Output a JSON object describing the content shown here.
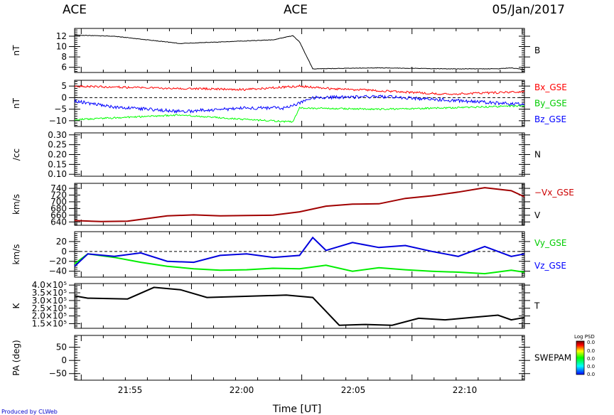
{
  "header": {
    "left": "ACE",
    "center": "ACE",
    "date": "05/Jan/2017"
  },
  "footer": {
    "produced_by": "Produced by CLWeb",
    "xlabel": "Time [UT]",
    "x_ticks": [
      "21:55",
      "22:00",
      "22:05",
      "22:10"
    ]
  },
  "colorbar": {
    "title": "Log PSD",
    "tick_labels": [
      "0.0",
      "0.0",
      "0.0",
      "0.0",
      "0.0"
    ],
    "colors": [
      "#0000ff",
      "#00ffff",
      "#00ff00",
      "#ffff00",
      "#ff0000",
      "#700000"
    ]
  },
  "chart_data": [
    {
      "type": "line",
      "ylabel": "nT",
      "ylim": [
        5,
        13.5
      ],
      "y_ticks": [
        6,
        8,
        10,
        12
      ],
      "y_tick_labels": [
        "6",
        "8",
        "10",
        "12"
      ],
      "series": [
        {
          "name": "B",
          "color": "#000000",
          "noise": 0.12,
          "x": [
            21.87,
            21.9,
            21.95,
            22.0,
            22.02,
            22.035,
            22.04,
            22.05,
            22.1,
            22.15,
            22.19,
            22.2,
            22.21
          ],
          "y": [
            12.2,
            12.0,
            10.6,
            11.1,
            11.3,
            12.1,
            10.9,
            5.7,
            5.9,
            5.7,
            5.7,
            5.9,
            5.5
          ]
        }
      ],
      "labels": [
        {
          "text": "B",
          "color": "#000000"
        }
      ],
      "dashed_zero": false
    },
    {
      "type": "line",
      "ylabel": "nT",
      "ylim": [
        -12.5,
        7.5
      ],
      "y_ticks": [
        -10,
        -5,
        0,
        5
      ],
      "y_tick_labels": [
        "−10",
        "−5",
        "0",
        "5"
      ],
      "series": [
        {
          "name": "Bx_GSE",
          "color": "#ff0000",
          "noise": 0.45,
          "x": [
            21.87,
            21.93,
            22.0,
            22.04,
            22.06,
            22.1,
            22.15,
            22.21
          ],
          "y": [
            5.0,
            4.2,
            3.5,
            5.0,
            4.0,
            3.0,
            1.5,
            2.5
          ]
        },
        {
          "name": "By_GSE",
          "color": "#00ff00",
          "noise": 0.35,
          "x": [
            21.87,
            21.95,
            22.0,
            22.035,
            22.04,
            22.1,
            22.15,
            22.21
          ],
          "y": [
            -9.5,
            -7.5,
            -9.5,
            -10.5,
            -4.5,
            -5.0,
            -4.5,
            -3.5
          ]
        },
        {
          "name": "Bz_GSE",
          "color": "#0000ff",
          "noise": 0.7,
          "x": [
            21.87,
            21.9,
            21.95,
            22.0,
            22.03,
            22.05,
            22.1,
            22.15,
            22.21
          ],
          "y": [
            -1.5,
            -4.0,
            -6.0,
            -4.5,
            -4.5,
            0.0,
            0.5,
            -1.0,
            -3.0
          ]
        }
      ],
      "labels": [
        {
          "text": "Bx_GSE",
          "color": "#ff0000"
        },
        {
          "text": "By_GSE",
          "color": "#00cc00"
        },
        {
          "text": "Bz_GSE",
          "color": "#0000ff"
        }
      ],
      "dashed_zero": true
    },
    {
      "type": "line",
      "ylabel": "/cc",
      "ylim": [
        0.09,
        0.31
      ],
      "y_ticks": [
        0.1,
        0.15,
        0.2,
        0.25,
        0.3
      ],
      "y_tick_labels": [
        "0.10",
        "0.15",
        "0.20",
        "0.25",
        "0.30"
      ],
      "series": [],
      "labels": [
        {
          "text": "N",
          "color": "#000000"
        }
      ],
      "dashed_zero": false
    },
    {
      "type": "line",
      "ylabel": "km/s",
      "ylim": [
        630,
        755
      ],
      "y_ticks": [
        640,
        660,
        680,
        700,
        720,
        740
      ],
      "y_tick_labels": [
        "640",
        "660",
        "680",
        "700",
        "720",
        "740"
      ],
      "series": [
        {
          "name": "-Vx_GSE",
          "color": "#a00000",
          "noise": 0,
          "x": [
            21.87,
            21.89,
            21.91,
            21.94,
            21.96,
            21.98,
            22.0,
            22.02,
            22.04,
            22.06,
            22.08,
            22.1,
            22.12,
            22.14,
            22.16,
            22.18,
            22.2,
            22.21
          ],
          "y": [
            644,
            641,
            642,
            658,
            661,
            658,
            659,
            660,
            670,
            687,
            693,
            694,
            710,
            718,
            729,
            742,
            733,
            715
          ]
        }
      ],
      "labels": [
        {
          "text": "−Vx_GSE",
          "color": "#cc0000"
        },
        {
          "text": "V",
          "color": "#000000"
        }
      ],
      "dashed_zero": false
    },
    {
      "type": "line",
      "ylabel": "km/s",
      "ylim": [
        -52,
        40
      ],
      "y_ticks": [
        -40,
        -20,
        0,
        20
      ],
      "y_tick_labels": [
        "−40",
        "−20",
        "0",
        "20"
      ],
      "series": [
        {
          "name": "Vy_GSE",
          "color": "#00ee00",
          "noise": 0,
          "x": [
            21.87,
            21.88,
            21.9,
            21.92,
            21.94,
            21.96,
            21.98,
            22.0,
            22.02,
            22.04,
            22.06,
            22.08,
            22.1,
            22.12,
            22.14,
            22.16,
            22.18,
            22.2,
            22.21
          ],
          "y": [
            -25,
            -5,
            -12,
            -22,
            -30,
            -35,
            -38,
            -37,
            -34,
            -35,
            -28,
            -40,
            -33,
            -37,
            -40,
            -42,
            -45,
            -38,
            -42
          ]
        },
        {
          "name": "Vz_GSE",
          "color": "#0000dd",
          "noise": 0,
          "x": [
            21.87,
            21.88,
            21.9,
            21.92,
            21.94,
            21.96,
            21.98,
            22.0,
            22.02,
            22.04,
            22.05,
            22.06,
            22.08,
            22.1,
            22.12,
            22.14,
            22.16,
            22.18,
            22.2,
            22.21
          ],
          "y": [
            -30,
            -5,
            -10,
            -3,
            -20,
            -22,
            -8,
            -5,
            -12,
            -8,
            28,
            2,
            18,
            8,
            12,
            0,
            -10,
            10,
            -10,
            -5
          ]
        }
      ],
      "labels": [
        {
          "text": "Vy_GSE",
          "color": "#00cc00"
        },
        {
          "text": "Vz_GSE",
          "color": "#0000ff"
        }
      ],
      "dashed_zero": true
    },
    {
      "type": "line",
      "ylabel": "K",
      "ylim": [
        120000,
        410000
      ],
      "y_ticks": [
        150000,
        200000,
        250000,
        300000,
        350000,
        400000
      ],
      "y_tick_labels": [
        "1.5×10⁵",
        "2.0×10⁵",
        "2.5×10⁵",
        "3.0×10⁵",
        "3.5×10⁵",
        "4.0×10⁵"
      ],
      "series": [
        {
          "name": "T",
          "color": "#000000",
          "noise": 0,
          "x": [
            21.87,
            21.88,
            21.91,
            21.93,
            21.95,
            21.97,
            21.99,
            22.01,
            22.03,
            22.05,
            22.07,
            22.09,
            22.11,
            22.13,
            22.15,
            22.17,
            22.19,
            22.2,
            22.21
          ],
          "y": [
            330000,
            315000,
            310000,
            385000,
            370000,
            320000,
            325000,
            330000,
            335000,
            320000,
            140000,
            145000,
            140000,
            185000,
            175000,
            190000,
            205000,
            175000,
            190000
          ]
        }
      ],
      "labels": [
        {
          "text": "T",
          "color": "#000000"
        }
      ],
      "dashed_zero": false
    },
    {
      "type": "heatmap",
      "ylabel": "PA (deg)",
      "ylim": [
        -75,
        95
      ],
      "y_ticks": [
        -50,
        0,
        50
      ],
      "y_tick_labels": [
        "−50",
        "0",
        "50"
      ],
      "series": [],
      "labels": [
        {
          "text": "SWEPAM",
          "color": "#000000"
        }
      ],
      "dashed_zero": false
    }
  ],
  "x_axis": {
    "xlim": [
      21.87,
      22.21
    ],
    "major_ticks": [
      21.9167,
      22.0,
      22.0833,
      22.1667
    ]
  }
}
